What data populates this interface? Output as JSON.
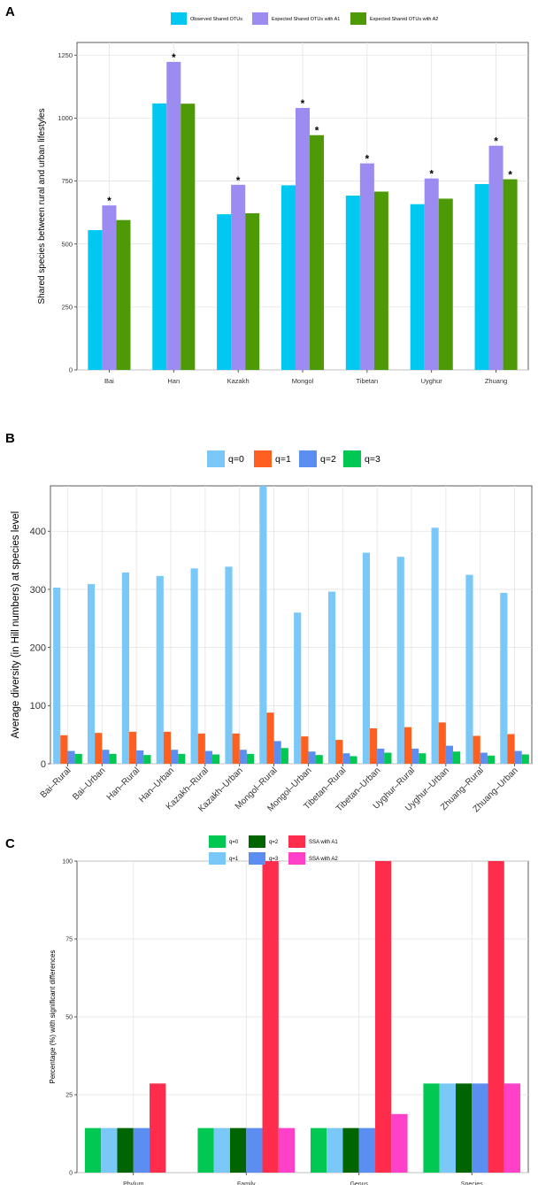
{
  "panels": {
    "a": {
      "letter": "A"
    },
    "b": {
      "letter": "B"
    },
    "c": {
      "letter": "C"
    }
  },
  "colors": {
    "observed": "#00C8F0",
    "exp_a1": "#9C8CF2",
    "exp_a2": "#4E9A06",
    "q0_b": "#7AC8F8",
    "q1_b": "#FF5F1F",
    "q2_b": "#5B8EF0",
    "q3_b": "#00C853",
    "q0_c": "#00C853",
    "q1_c": "#7AC8F8",
    "q2_c": "#006400",
    "q3_c": "#5B8EF0",
    "ssa_a1": "#FF2D4B",
    "ssa_a2": "#FF40C8"
  },
  "chart_data": [
    {
      "type": "bar",
      "panel": "A",
      "title": "",
      "xlabel": "",
      "ylabel": "Shared species between rural and urban lifestyles",
      "categories": [
        "Bai",
        "Han",
        "Kazakh",
        "Mongol",
        "Tibetan",
        "Uyghur",
        "Zhuang"
      ],
      "series": [
        {
          "name": "Observed Shared OTUs",
          "values": [
            555,
            1058,
            618,
            733,
            692,
            658,
            738
          ]
        },
        {
          "name": "Expected Shared OTUs with A1",
          "values": [
            653,
            1223,
            735,
            1040,
            820,
            760,
            890
          ]
        },
        {
          "name": "Expected Shared OTUs with A2",
          "values": [
            595,
            1057,
            622,
            932,
            708,
            680,
            757
          ]
        }
      ],
      "significance_marks": [
        [
          false,
          false,
          false,
          false,
          false,
          false,
          false
        ],
        [
          true,
          true,
          true,
          true,
          true,
          true,
          true
        ],
        [
          false,
          false,
          false,
          true,
          false,
          false,
          true
        ]
      ],
      "significance_symbol": "*",
      "ylim": [
        0,
        1300
      ],
      "yticks": [
        0,
        250,
        500,
        750,
        1000,
        1250
      ],
      "grid": true,
      "legend_position": "top"
    },
    {
      "type": "bar",
      "panel": "B",
      "title": "",
      "xlabel": "",
      "ylabel": "Average diversity (in Hill numbers) at species level",
      "categories": [
        "Bai–Rural",
        "Bai–Urban",
        "Han–Rural",
        "Han–Urban",
        "Kazakh–Rural",
        "Kazakh–Urban",
        "Mongol–Rural",
        "Mongol–Urban",
        "Tibetan–Rural",
        "Tibetan–Urban",
        "Uyghur–Rural",
        "Uyghur–Urban",
        "Zhuang–Rural",
        "Zhuang–Urban"
      ],
      "series": [
        {
          "name": "q=0",
          "values": [
            303,
            309,
            329,
            323,
            336,
            339,
            478,
            260,
            296,
            363,
            356,
            406,
            325,
            294
          ]
        },
        {
          "name": "q=1",
          "values": [
            49,
            53,
            55,
            55,
            52,
            52,
            88,
            47,
            41,
            61,
            63,
            71,
            48,
            51
          ]
        },
        {
          "name": "q=2",
          "values": [
            22,
            24,
            23,
            24,
            22,
            24,
            39,
            21,
            18,
            26,
            26,
            31,
            19,
            22
          ]
        },
        {
          "name": "q=3",
          "values": [
            17,
            17,
            15,
            17,
            16,
            17,
            27,
            15,
            13,
            19,
            18,
            21,
            14,
            16
          ]
        }
      ],
      "ylim": [
        0,
        478
      ],
      "yticks": [
        0,
        100,
        200,
        300,
        400
      ],
      "grid": true,
      "legend_position": "top"
    },
    {
      "type": "bar",
      "panel": "C",
      "title": "",
      "xlabel": "",
      "ylabel": "Percentage (%) with significant differences",
      "categories": [
        "Phylum",
        "Family",
        "Genus",
        "Species"
      ],
      "series": [
        {
          "name": "q=0",
          "values": [
            14.3,
            14.3,
            14.3,
            28.6
          ]
        },
        {
          "name": "q=1",
          "values": [
            14.3,
            14.3,
            14.3,
            28.6
          ]
        },
        {
          "name": "q=2",
          "values": [
            14.3,
            14.3,
            14.3,
            28.6
          ]
        },
        {
          "name": "q=3",
          "values": [
            14.3,
            14.3,
            14.3,
            28.6
          ]
        },
        {
          "name": "SSA with A1",
          "values": [
            28.6,
            100,
            100,
            100
          ]
        },
        {
          "name": "SSA with A2",
          "values": [
            0,
            14.3,
            18.8,
            28.6
          ]
        }
      ],
      "ylim": [
        0,
        100
      ],
      "yticks": [
        0,
        25,
        50,
        75,
        100
      ],
      "grid": true,
      "legend_position": "top"
    }
  ]
}
